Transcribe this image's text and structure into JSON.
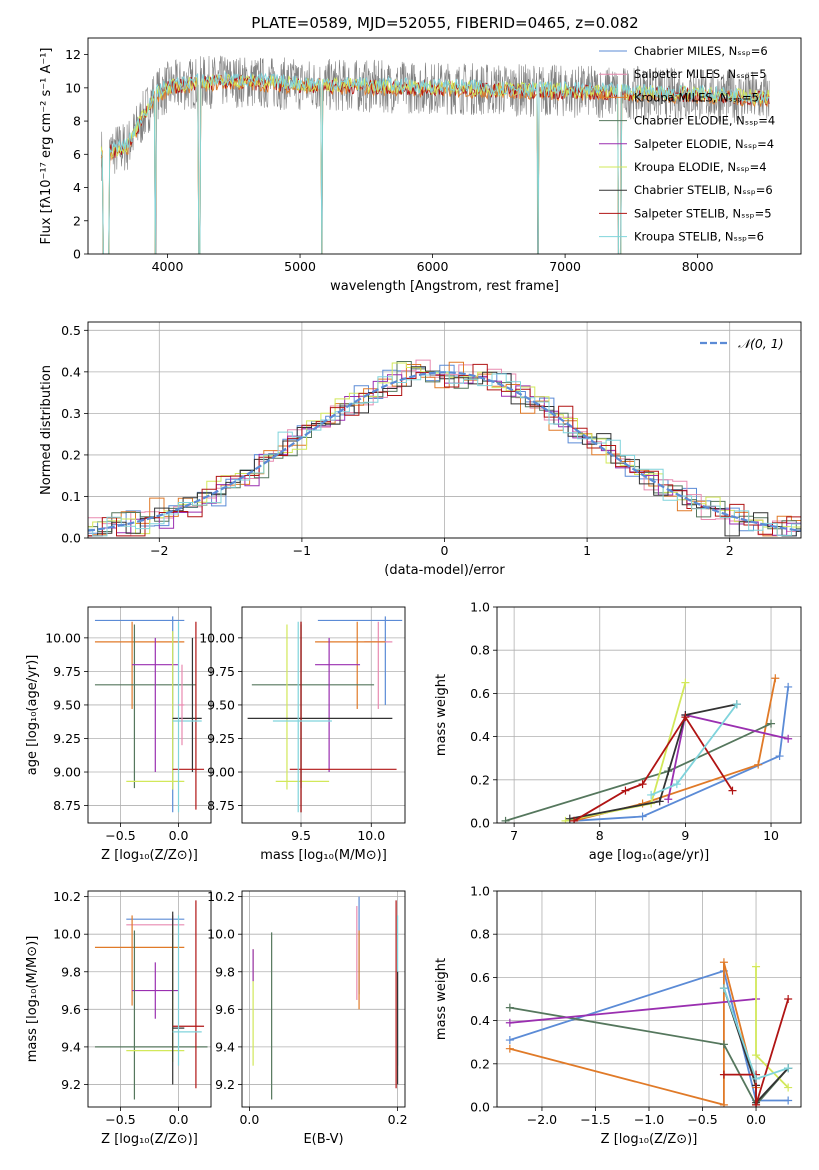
{
  "figure_title": "PLATE=0589, MJD=52055, FIBERID=0465, z=0.082",
  "colors": {
    "chabrier_miles": "#5b8bd6",
    "salpeter_miles": "#e88ab0",
    "kroupa_miles": "#e07a28",
    "chabrier_elodie": "#55775d",
    "salpeter_elodie": "#9a2fb0",
    "kroupa_elodie": "#d2e85a",
    "chabrier_stelib": "#333333",
    "salpeter_stelib": "#b01414",
    "kroupa_stelib": "#80d4dc",
    "data": "#808080",
    "normal": "#5b8bd6"
  },
  "chart_data": [
    {
      "id": "spectrum",
      "type": "line",
      "xlabel": "wavelength [Angstrom, rest frame]",
      "ylabel": "Flux [fλ10⁻¹⁷ erg cm⁻² s⁻¹ A⁻¹]",
      "xlim": [
        3400,
        8780
      ],
      "ylim": [
        0,
        13
      ],
      "xticks": [
        4000,
        5000,
        6000,
        7000,
        8000
      ],
      "yticks": [
        0,
        2,
        4,
        6,
        8,
        10,
        12
      ],
      "legend": [
        {
          "label": "Chabrier MILES, Nₛₛₚ=6",
          "color_key": "chabrier_miles"
        },
        {
          "label": "Salpeter MILES, Nₛₛₚ=5",
          "color_key": "salpeter_miles"
        },
        {
          "label": "Kroupa MILES, Nₛₛₚ=5",
          "color_key": "kroupa_miles"
        },
        {
          "label": "Chabrier ELODIE, Nₛₛₚ=4",
          "color_key": "chabrier_elodie"
        },
        {
          "label": "Salpeter ELODIE, Nₛₛₚ=4",
          "color_key": "salpeter_elodie"
        },
        {
          "label": "Kroupa ELODIE, Nₛₛₚ=4",
          "color_key": "kroupa_elodie"
        },
        {
          "label": "Chabrier STELIB, Nₛₛₚ=6",
          "color_key": "chabrier_stelib"
        },
        {
          "label": "Salpeter STELIB, Nₛₛₚ=5",
          "color_key": "salpeter_stelib"
        },
        {
          "label": "Kroupa STELIB, Nₛₛₚ=6",
          "color_key": "kroupa_stelib"
        }
      ],
      "continuum": {
        "x": [
          3500,
          3700,
          3800,
          3900,
          4000,
          4200,
          4500,
          5000,
          5500,
          6000,
          6500,
          7000,
          7500,
          8000,
          8500
        ],
        "y": [
          6.0,
          6.5,
          8.0,
          9.5,
          10.0,
          10.3,
          10.4,
          10.2,
          10.1,
          10.0,
          9.9,
          9.8,
          9.7,
          9.6,
          9.4
        ]
      },
      "gaps": [
        [
          3510,
          3560
        ],
        [
          3905,
          3915
        ],
        [
          4235,
          4245
        ],
        [
          5160,
          5168
        ],
        [
          6790,
          6800
        ],
        [
          7400,
          7420
        ]
      ]
    },
    {
      "id": "residuals",
      "type": "bar",
      "xlabel": "(data-model)/error",
      "ylabel": "Normed distribution",
      "xlim": [
        -2.5,
        2.5
      ],
      "ylim": [
        0,
        0.52
      ],
      "xticks": [
        -2,
        -1,
        0,
        1,
        2
      ],
      "yticks": [
        0.0,
        0.1,
        0.2,
        0.3,
        0.4,
        0.5
      ],
      "legend": [
        {
          "label": "𝒩(0, 1)",
          "color_key": "normal"
        }
      ],
      "bin_width": 0.1
    },
    {
      "id": "age-vs-Z",
      "type": "scatter",
      "xlabel": "Z [log₁₀(Z/Z⊙)]",
      "ylabel": "age  [log₁₀(age/yr)]",
      "xlim": [
        -0.78,
        0.28
      ],
      "ylim": [
        8.62,
        10.23
      ],
      "xticks": [
        -0.5,
        0.0
      ],
      "yticks": [
        8.75,
        9.0,
        9.25,
        9.5,
        9.75,
        10.0
      ],
      "points": [
        {
          "c": "chabrier_miles",
          "x": -0.05,
          "y": 10.13,
          "ex": [
            -0.72,
            0.05
          ],
          "ey": [
            8.7,
            10.16
          ]
        },
        {
          "c": "kroupa_miles",
          "x": -0.4,
          "y": 9.97,
          "ex": [
            -0.72,
            0.05
          ],
          "ey": [
            9.47,
            10.12
          ]
        },
        {
          "c": "chabrier_elodie",
          "x": -0.38,
          "y": 9.65,
          "ex": [
            -0.72,
            0.15
          ],
          "ey": [
            8.88,
            10.1
          ]
        },
        {
          "c": "salpeter_elodie",
          "x": -0.2,
          "y": 9.8,
          "ex": [
            -0.4,
            0.0
          ],
          "ey": [
            9.0,
            10.0
          ]
        },
        {
          "c": "kroupa_elodie",
          "x": -0.05,
          "y": 8.93,
          "ex": [
            -0.45,
            0.05
          ],
          "ey": [
            8.87,
            10.05
          ]
        },
        {
          "c": "chabrier_stelib",
          "x": 0.12,
          "y": 9.4,
          "ex": [
            -0.05,
            0.2
          ],
          "ey": [
            9.0,
            10.0
          ]
        },
        {
          "c": "salpeter_stelib",
          "x": 0.15,
          "y": 9.02,
          "ex": [
            -0.05,
            0.22
          ],
          "ey": [
            8.72,
            10.12
          ]
        },
        {
          "c": "kroupa_stelib",
          "x": 0.0,
          "y": 9.38,
          "ex": [
            -0.05,
            0.2
          ],
          "ey": [
            8.7,
            10.12
          ]
        },
        {
          "c": "salpeter_miles",
          "x": 0.03,
          "y": 9.5,
          "ex": [
            0.0,
            0.05
          ],
          "ey": [
            9.2,
            9.8
          ]
        }
      ]
    },
    {
      "id": "age-vs-mass",
      "type": "scatter",
      "xlabel": "mass [log₁₀(M/M⊙)]",
      "ylabel": "",
      "xlim": [
        9.08,
        10.24
      ],
      "ylim": [
        8.62,
        10.23
      ],
      "xticks": [
        9.5,
        10.0
      ],
      "yticks": [
        8.75,
        9.0,
        9.25,
        9.5,
        9.75,
        10.0
      ],
      "points": [
        {
          "c": "chabrier_miles",
          "x": 10.1,
          "y": 10.13,
          "ex": [
            9.62,
            10.22
          ],
          "ey": [
            9.5,
            10.16
          ]
        },
        {
          "c": "salpeter_miles",
          "x": 10.05,
          "y": 9.97,
          "ex": [
            9.95,
            10.15
          ],
          "ey": [
            9.47,
            10.12
          ]
        },
        {
          "c": "kroupa_miles",
          "x": 9.9,
          "y": 9.97,
          "ex": [
            9.6,
            10.1
          ],
          "ey": [
            9.47,
            10.12
          ]
        },
        {
          "c": "chabrier_elodie",
          "x": 9.5,
          "y": 9.65,
          "ex": [
            9.15,
            10.02
          ],
          "ey": [
            8.88,
            10.1
          ]
        },
        {
          "c": "salpeter_elodie",
          "x": 9.7,
          "y": 9.8,
          "ex": [
            9.6,
            9.92
          ],
          "ey": [
            9.0,
            10.0
          ]
        },
        {
          "c": "kroupa_elodie",
          "x": 9.4,
          "y": 8.93,
          "ex": [
            9.32,
            9.7
          ],
          "ey": [
            8.87,
            10.1
          ]
        },
        {
          "c": "chabrier_stelib",
          "x": 9.5,
          "y": 9.4,
          "ex": [
            9.12,
            10.15
          ],
          "ey": [
            8.7,
            10.12
          ]
        },
        {
          "c": "salpeter_stelib",
          "x": 9.5,
          "y": 9.02,
          "ex": [
            9.42,
            10.18
          ],
          "ey": [
            8.7,
            10.12
          ]
        },
        {
          "c": "kroupa_stelib",
          "x": 9.48,
          "y": 9.38,
          "ex": [
            9.3,
            9.72
          ],
          "ey": [
            8.7,
            10.12
          ]
        }
      ]
    },
    {
      "id": "weight-vs-age",
      "type": "line",
      "xlabel": "age  [log₁₀(age/yr)]",
      "ylabel": "mass weight",
      "xlim": [
        6.8,
        10.35
      ],
      "ylim": [
        0,
        1
      ],
      "xticks": [
        7,
        8,
        9,
        10
      ],
      "yticks": [
        0.0,
        0.2,
        0.4,
        0.6,
        0.8,
        1.0
      ],
      "series": [
        {
          "c": "chabrier_miles",
          "x": [
            7.7,
            8.5,
            10.1,
            10.2
          ],
          "y": [
            0.01,
            0.03,
            0.31,
            0.63
          ]
        },
        {
          "c": "kroupa_miles",
          "x": [
            7.7,
            8.5,
            9.85,
            10.05
          ],
          "y": [
            0.01,
            0.09,
            0.27,
            0.67
          ]
        },
        {
          "c": "chabrier_elodie",
          "x": [
            6.9,
            8.8,
            10.0
          ],
          "y": [
            0.01,
            0.24,
            0.46
          ]
        },
        {
          "c": "salpeter_elodie",
          "x": [
            8.8,
            9.0,
            10.2
          ],
          "y": [
            0.11,
            0.5,
            0.39
          ]
        },
        {
          "c": "kroupa_elodie",
          "x": [
            7.6,
            8.6,
            9.0
          ],
          "y": [
            0.01,
            0.09,
            0.65
          ]
        },
        {
          "c": "chabrier_stelib",
          "x": [
            7.65,
            8.7,
            9.0,
            9.6
          ],
          "y": [
            0.02,
            0.1,
            0.5,
            0.55
          ]
        },
        {
          "c": "salpeter_stelib",
          "x": [
            7.7,
            8.3,
            8.5,
            9.0,
            9.55
          ],
          "y": [
            0.01,
            0.15,
            0.18,
            0.49,
            0.15
          ]
        },
        {
          "c": "kroupa_stelib",
          "x": [
            8.6,
            8.9,
            9.6
          ],
          "y": [
            0.13,
            0.18,
            0.55
          ]
        }
      ]
    },
    {
      "id": "mass-vs-Z",
      "type": "scatter",
      "xlabel": "Z [log₁₀(Z/Z⊙)]",
      "ylabel": "mass [log₁₀(M/M⊙)]",
      "xlim": [
        -0.78,
        0.28
      ],
      "ylim": [
        9.08,
        10.23
      ],
      "xticks": [
        -0.5,
        0.0
      ],
      "yticks": [
        9.2,
        9.4,
        9.6,
        9.8,
        10.0,
        10.2
      ],
      "points": [
        {
          "c": "chabrier_miles",
          "x": -0.05,
          "y": 10.08,
          "ex": [
            -0.45,
            0.05
          ],
          "ey": [
            9.65,
            10.1
          ]
        },
        {
          "c": "salpeter_miles",
          "x": -0.05,
          "y": 10.05,
          "ex": [
            -0.45,
            0.05
          ],
          "ey": [
            9.95,
            10.1
          ]
        },
        {
          "c": "kroupa_miles",
          "x": -0.4,
          "y": 9.93,
          "ex": [
            -0.72,
            0.05
          ],
          "ey": [
            9.62,
            10.1
          ]
        },
        {
          "c": "salpeter_elodie",
          "x": -0.2,
          "y": 9.7,
          "ex": [
            -0.4,
            0.0
          ],
          "ey": [
            9.55,
            9.85
          ]
        },
        {
          "c": "chabrier_elodie",
          "x": -0.38,
          "y": 9.4,
          "ex": [
            -0.72,
            0.25
          ],
          "ey": [
            9.12,
            10.02
          ]
        },
        {
          "c": "kroupa_elodie",
          "x": -0.05,
          "y": 9.38,
          "ex": [
            -0.45,
            0.05
          ],
          "ey": [
            9.32,
            10.05
          ]
        },
        {
          "c": "chabrier_stelib",
          "x": -0.05,
          "y": 9.5,
          "ex": [
            -0.05,
            0.05
          ],
          "ey": [
            9.2,
            10.12
          ]
        },
        {
          "c": "salpeter_stelib",
          "x": 0.15,
          "y": 9.51,
          "ex": [
            -0.05,
            0.22
          ],
          "ey": [
            9.18,
            10.18
          ]
        },
        {
          "c": "kroupa_stelib",
          "x": 0.0,
          "y": 9.48,
          "ex": [
            -0.05,
            0.2
          ],
          "ey": [
            9.3,
            10.1
          ]
        }
      ]
    },
    {
      "id": "mass-vs-EBV",
      "type": "scatter",
      "xlabel": "E(B-V)",
      "ylabel": "",
      "xlim": [
        -0.01,
        0.21
      ],
      "ylim": [
        9.08,
        10.23
      ],
      "xticks": [
        0.0,
        0.2
      ],
      "yticks": [
        9.2,
        9.4,
        9.6,
        9.8,
        10.0,
        10.2
      ],
      "points": [
        {
          "c": "kroupa_elodie",
          "x": 0.005,
          "y": 9.7,
          "ey": [
            9.3,
            9.92
          ]
        },
        {
          "c": "salpeter_elodie",
          "x": 0.005,
          "y": 9.85,
          "ey": [
            9.75,
            9.92
          ]
        },
        {
          "c": "chabrier_elodie",
          "x": 0.03,
          "y": 9.5,
          "ey": [
            9.12,
            10.01
          ]
        },
        {
          "c": "chabrier_miles",
          "x": 0.148,
          "y": 9.9,
          "ey": [
            9.68,
            10.2
          ]
        },
        {
          "c": "salpeter_miles",
          "x": 0.145,
          "y": 9.9,
          "ey": [
            9.65,
            10.15
          ]
        },
        {
          "c": "kroupa_miles",
          "x": 0.148,
          "y": 9.8,
          "ey": [
            9.6,
            10.02
          ]
        },
        {
          "c": "salpeter_stelib",
          "x": 0.198,
          "y": 9.6,
          "ey": [
            9.18,
            10.18
          ]
        },
        {
          "c": "kroupa_stelib",
          "x": 0.2,
          "y": 9.6,
          "ey": [
            9.3,
            10.1
          ]
        },
        {
          "c": "chabrier_stelib",
          "x": 0.2,
          "y": 9.5,
          "ey": [
            9.2,
            9.8
          ]
        }
      ]
    },
    {
      "id": "weight-vs-Z",
      "type": "line",
      "xlabel": "Z [log₁₀(Z/Z⊙)]",
      "ylabel": "mass weight",
      "xlim": [
        -2.42,
        0.42
      ],
      "ylim": [
        0,
        1
      ],
      "xticks": [
        -2.0,
        -1.5,
        -1.0,
        -0.5,
        0.0
      ],
      "yticks": [
        0.0,
        0.2,
        0.4,
        0.6,
        0.8,
        1.0
      ],
      "series": [
        {
          "c": "chabrier_miles",
          "x": [
            -2.3,
            -0.3,
            0.0,
            0.3
          ],
          "y": [
            0.31,
            0.63,
            0.03,
            0.03
          ]
        },
        {
          "c": "kroupa_miles",
          "x": [
            -2.3,
            -0.3,
            -0.3,
            0.0
          ],
          "y": [
            0.27,
            0.01,
            0.67,
            0.09
          ]
        },
        {
          "c": "chabrier_elodie",
          "x": [
            -2.3,
            -0.3,
            0.0,
            0.3
          ],
          "y": [
            0.46,
            0.29,
            0.01,
            0.18
          ]
        },
        {
          "c": "salpeter_elodie",
          "x": [
            -2.3,
            0.0
          ],
          "y": [
            0.39,
            0.5
          ]
        },
        {
          "c": "kroupa_elodie",
          "x": [
            0.0,
            0.0,
            0.3
          ],
          "y": [
            0.65,
            0.24,
            0.09
          ]
        },
        {
          "c": "chabrier_stelib",
          "x": [
            -0.3,
            0.0,
            0.0,
            0.3
          ],
          "y": [
            0.55,
            0.1,
            0.02,
            0.18
          ]
        },
        {
          "c": "salpeter_stelib",
          "x": [
            -0.3,
            0.0,
            0.0,
            0.3
          ],
          "y": [
            0.15,
            0.15,
            0.01,
            0.5
          ]
        },
        {
          "c": "kroupa_stelib",
          "x": [
            -0.3,
            0.0,
            0.3
          ],
          "y": [
            0.55,
            0.13,
            0.18
          ]
        }
      ]
    }
  ]
}
